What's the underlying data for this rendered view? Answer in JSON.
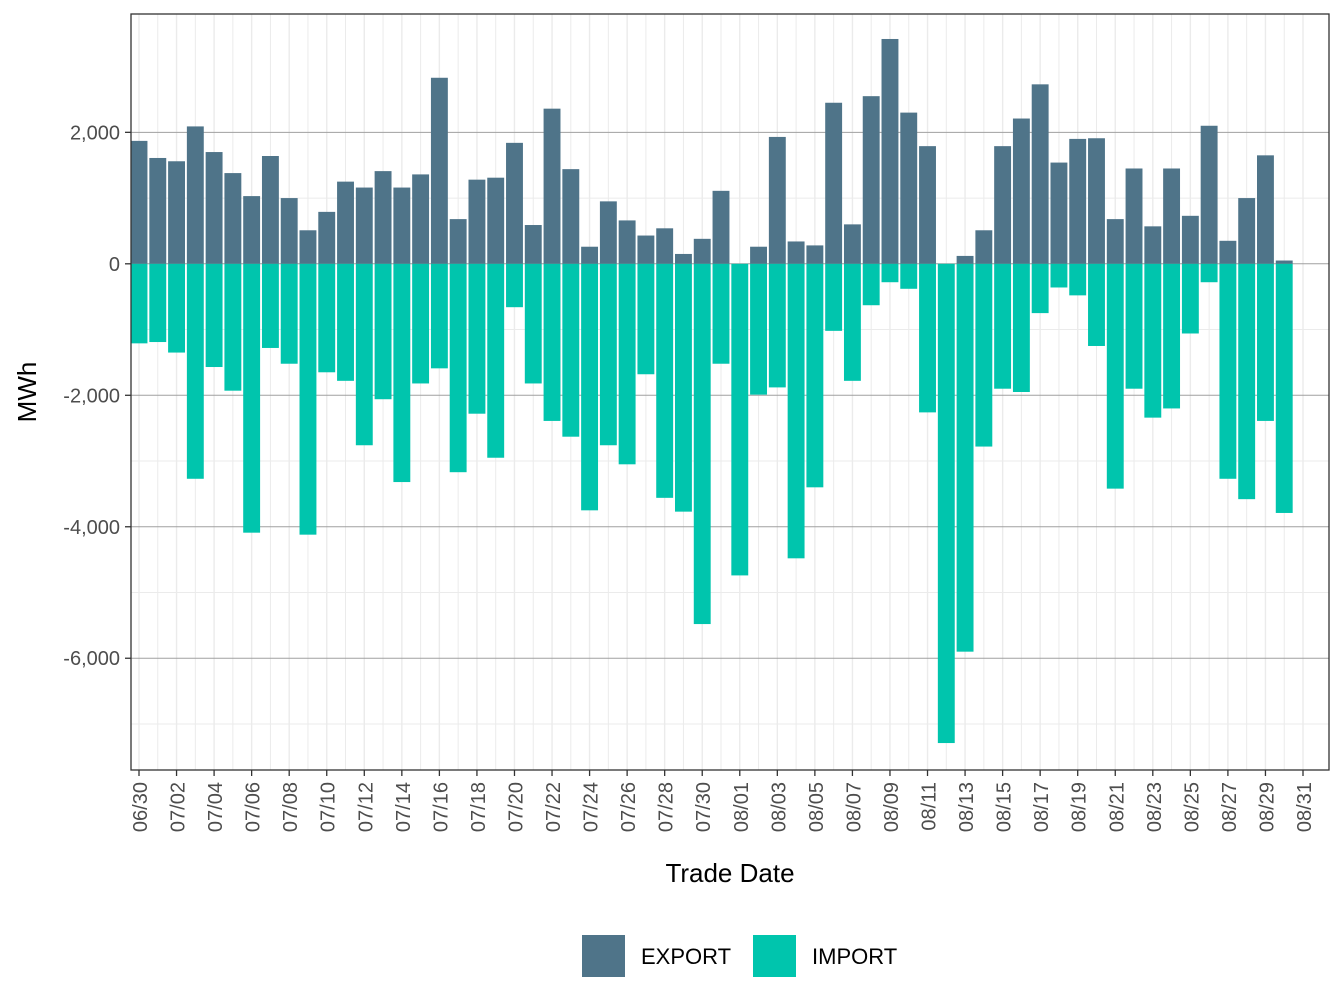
{
  "chart_data": {
    "type": "bar",
    "stacked": true,
    "title": "",
    "xlabel": "Trade Date",
    "ylabel": "MWh",
    "ylim": [
      -7700,
      3800
    ],
    "yticks": [
      2000,
      0,
      -2000,
      -4000,
      -6000
    ],
    "ytick_labels": [
      "2,000",
      "0",
      "-2,000",
      "-4,000",
      "-6,000"
    ],
    "grid": true,
    "legend_position": "bottom",
    "categories": [
      "06/30",
      "07/01",
      "07/02",
      "07/03",
      "07/04",
      "07/05",
      "07/06",
      "07/07",
      "07/08",
      "07/09",
      "07/10",
      "07/11",
      "07/12",
      "07/13",
      "07/14",
      "07/15",
      "07/16",
      "07/17",
      "07/18",
      "07/19",
      "07/20",
      "07/21",
      "07/22",
      "07/23",
      "07/24",
      "07/25",
      "07/26",
      "07/27",
      "07/28",
      "07/29",
      "07/30",
      "07/31",
      "08/01",
      "08/02",
      "08/03",
      "08/04",
      "08/05",
      "08/06",
      "08/07",
      "08/08",
      "08/09",
      "08/10",
      "08/11",
      "08/12",
      "08/13",
      "08/14",
      "08/15",
      "08/16",
      "08/17",
      "08/18",
      "08/19",
      "08/20",
      "08/21",
      "08/22",
      "08/23",
      "08/24",
      "08/25",
      "08/26",
      "08/27",
      "08/28",
      "08/29",
      "08/30",
      "08/31"
    ],
    "xtick_labels": [
      "06/30",
      "07/02",
      "07/04",
      "07/06",
      "07/08",
      "07/10",
      "07/12",
      "07/14",
      "07/16",
      "07/18",
      "07/20",
      "07/22",
      "07/24",
      "07/26",
      "07/28",
      "07/30",
      "08/01",
      "08/03",
      "08/05",
      "08/07",
      "08/09",
      "08/11",
      "08/13",
      "08/15",
      "08/17",
      "08/19",
      "08/21",
      "08/23",
      "08/25",
      "08/27",
      "08/29",
      "08/31"
    ],
    "series": [
      {
        "name": "EXPORT",
        "color": "#4f7489",
        "values": [
          1870,
          1610,
          1560,
          2090,
          1700,
          1380,
          1030,
          1640,
          1000,
          510,
          790,
          1250,
          1160,
          1410,
          1160,
          1360,
          2830,
          680,
          1280,
          1310,
          1840,
          590,
          2360,
          1440,
          260,
          950,
          660,
          430,
          540,
          150,
          380,
          1110,
          0,
          260,
          1930,
          340,
          280,
          2450,
          600,
          2550,
          3420,
          2300,
          1790,
          0,
          120,
          510,
          1790,
          2210,
          2730,
          1540,
          1900,
          1910,
          680,
          1450,
          570,
          1450,
          730,
          2100,
          350,
          1000,
          1650,
          50,
          0
        ]
      },
      {
        "name": "IMPORT",
        "color": "#00c5ad",
        "values": [
          -1210,
          -1190,
          -1350,
          -3270,
          -1570,
          -1930,
          -4090,
          -1280,
          -1520,
          -4120,
          -1650,
          -1780,
          -2760,
          -2060,
          -3320,
          -1820,
          -1590,
          -3170,
          -2280,
          -2950,
          -660,
          -1820,
          -2390,
          -2630,
          -3750,
          -2760,
          -3050,
          -1680,
          -3560,
          -3770,
          -5480,
          -1520,
          -4740,
          -1990,
          -1880,
          -4480,
          -3400,
          -1020,
          -1780,
          -630,
          -280,
          -380,
          -2260,
          -7290,
          -5900,
          -2780,
          -1900,
          -1950,
          -750,
          -360,
          -480,
          -1250,
          -3420,
          -1900,
          -2340,
          -2200,
          -1060,
          -280,
          -3270,
          -3580,
          -2390,
          -3790,
          0
        ]
      }
    ]
  }
}
